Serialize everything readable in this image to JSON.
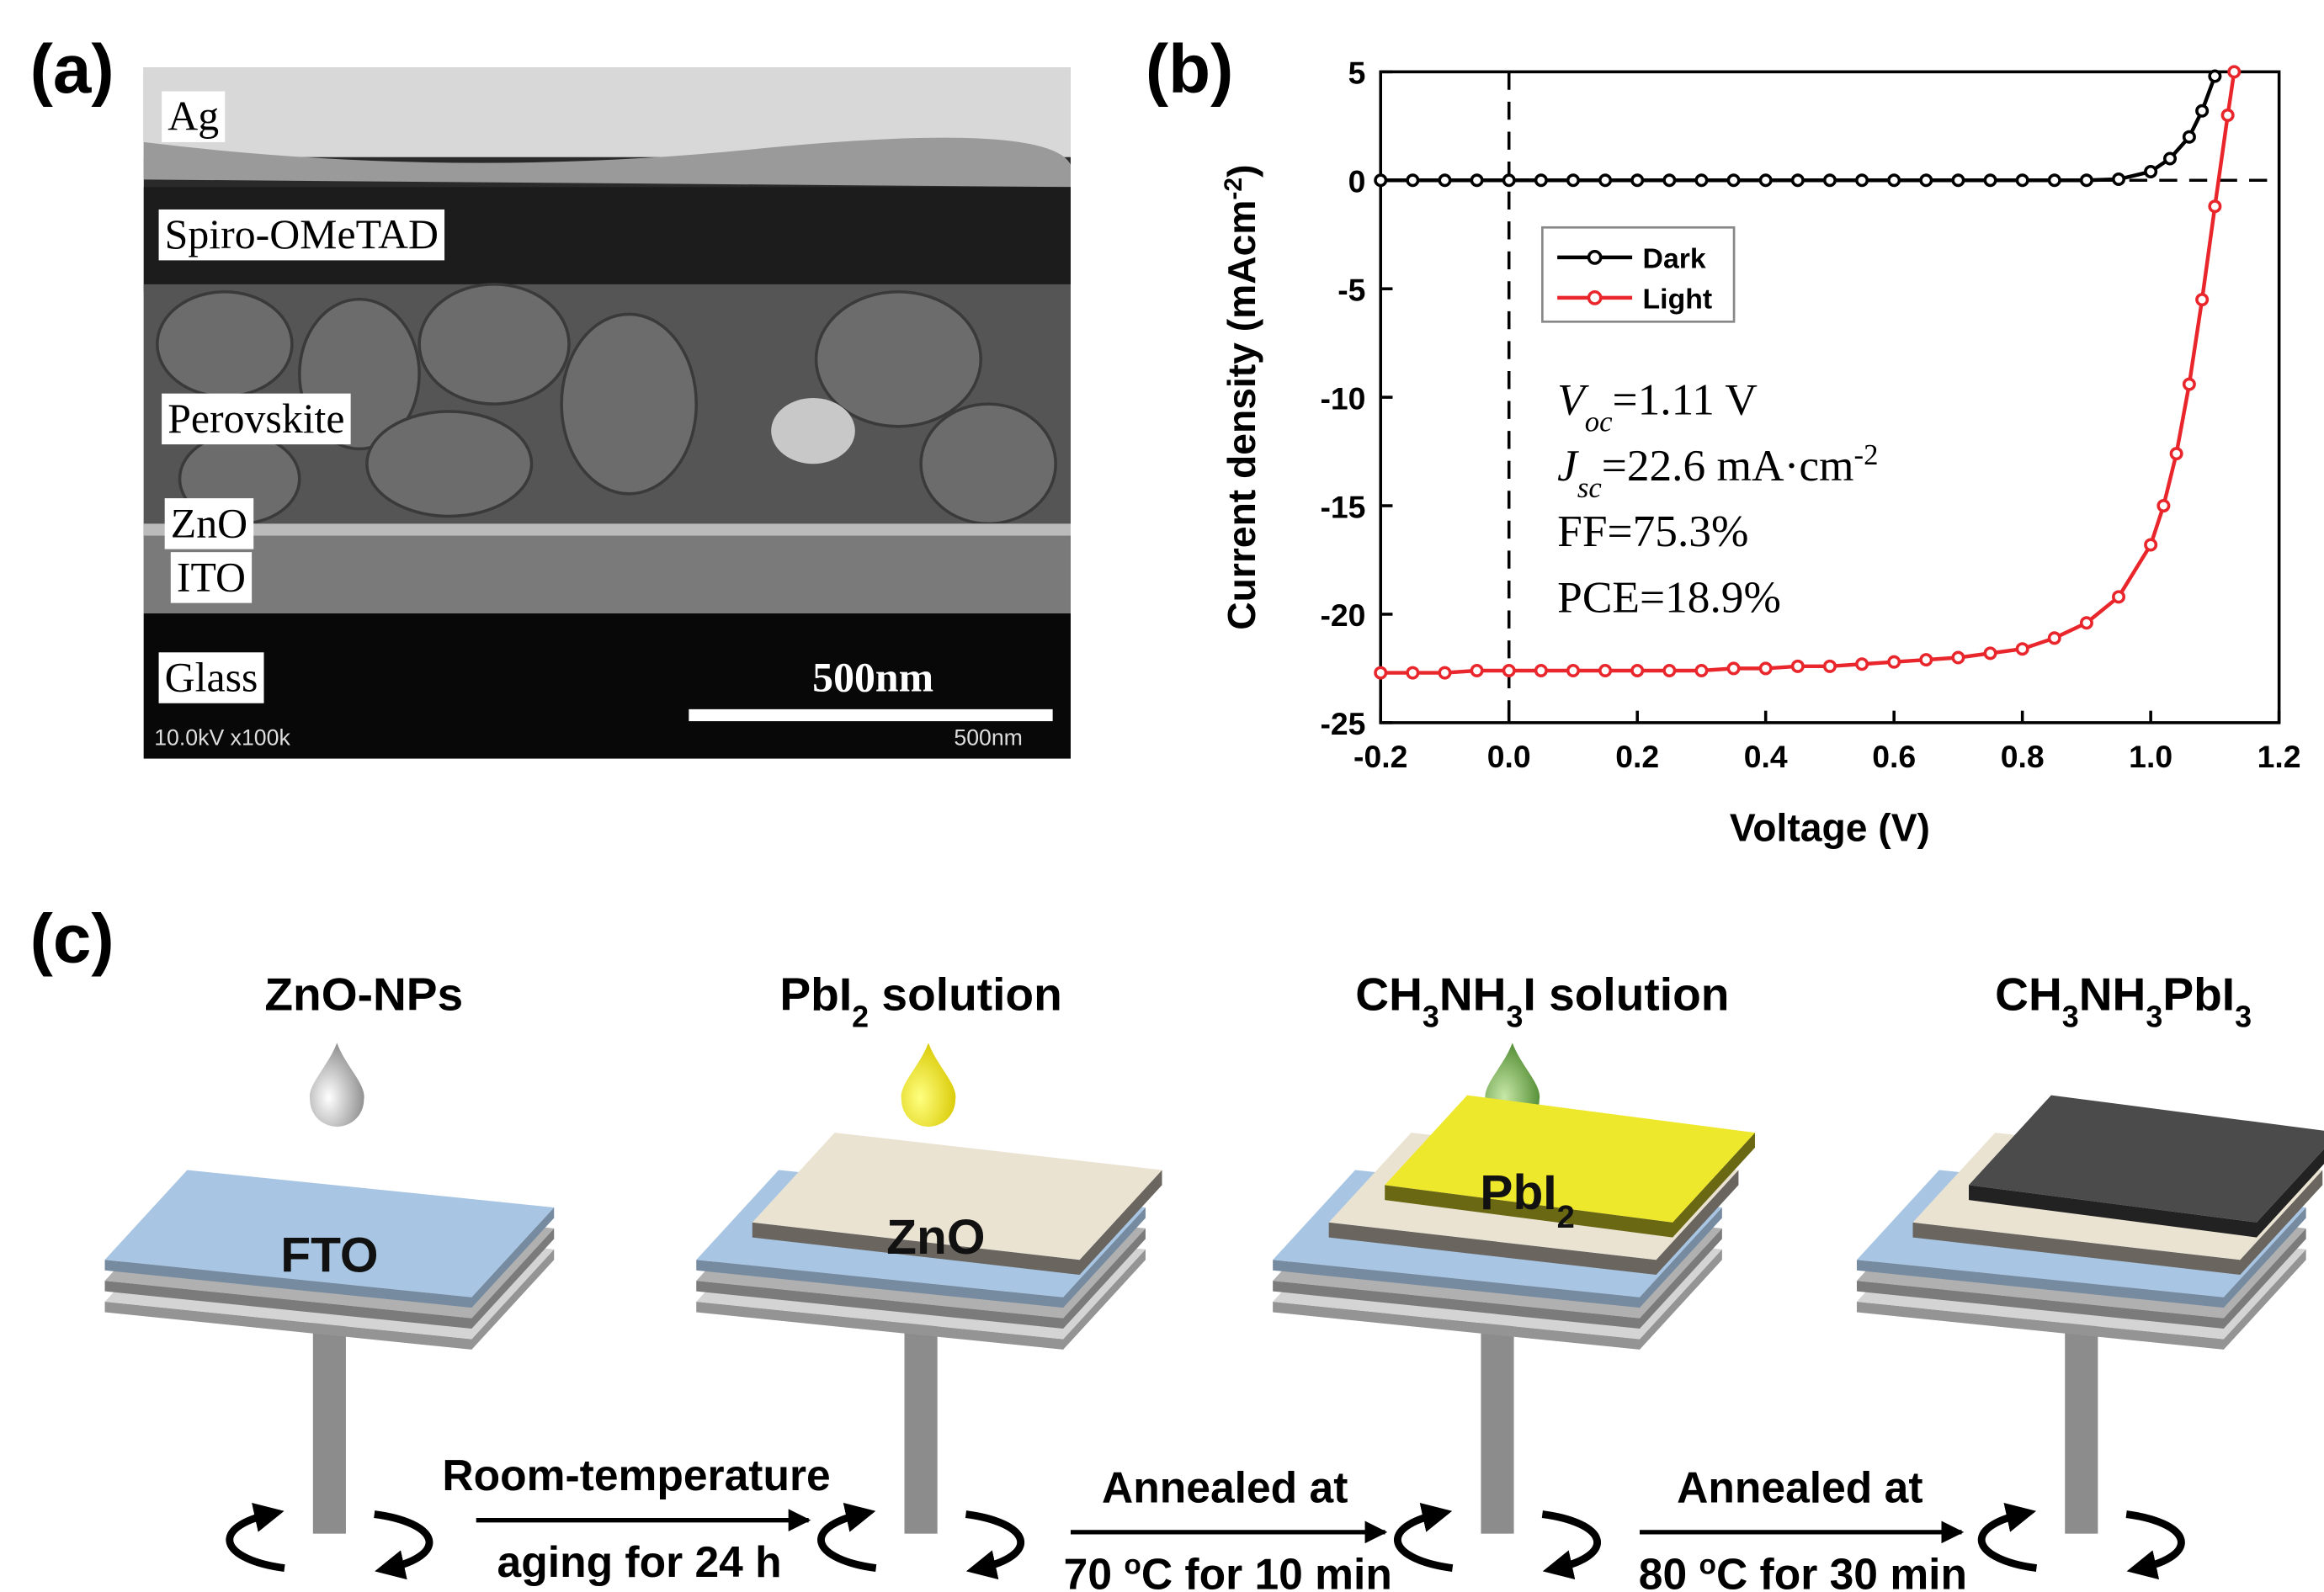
{
  "panels": [
    "(a)",
    "(b)",
    "(c)"
  ],
  "sem": {
    "layers": [
      "Ag",
      "Spiro-OMeTAD",
      "Perovskite",
      "ZnO",
      "ITO",
      "Glass"
    ],
    "scale_bar": "500nm",
    "info": "10.0kV x100k",
    "info_scale": "500nm"
  },
  "chart_data": {
    "type": "line",
    "xlabel": "Voltage (V)",
    "ylabel": [
      {
        "t": "Current density (mAcm"
      },
      {
        "sup": "-2"
      },
      {
        "t": ")"
      }
    ],
    "xlim": [
      -0.2,
      1.2
    ],
    "ylim": [
      -25,
      5
    ],
    "xticks": [
      -0.2,
      {
        "value": 0,
        "label": "0.0"
      },
      0.2,
      0.4,
      0.6,
      0.8,
      {
        "value": 1,
        "label": "1.0"
      },
      1.2
    ],
    "yticks": [
      5,
      0,
      -5,
      -10,
      -15,
      -20,
      -25
    ],
    "series": [
      {
        "name": "Dark",
        "color": "#000000",
        "x": [
          -0.2,
          -0.15,
          -0.1,
          -0.05,
          0,
          0.05,
          0.1,
          0.15,
          0.2,
          0.25,
          0.3,
          0.35,
          0.4,
          0.45,
          0.5,
          0.55,
          0.6,
          0.65,
          0.7,
          0.75,
          0.8,
          0.85,
          0.9,
          0.95,
          1.0,
          1.03,
          1.06,
          1.08,
          1.1
        ],
        "values": [
          0,
          0,
          0,
          0,
          0,
          0,
          0,
          0,
          0,
          0,
          0,
          0,
          0,
          0,
          0,
          0,
          0,
          0,
          0,
          0,
          0,
          0,
          0,
          0.05,
          0.4,
          1.0,
          2.0,
          3.2,
          4.8
        ]
      },
      {
        "name": "Light",
        "color": "#e8262b",
        "x": [
          -0.2,
          -0.15,
          -0.1,
          -0.05,
          0,
          0.05,
          0.1,
          0.15,
          0.2,
          0.25,
          0.3,
          0.35,
          0.4,
          0.45,
          0.5,
          0.55,
          0.6,
          0.65,
          0.7,
          0.75,
          0.8,
          0.85,
          0.9,
          0.95,
          1.0,
          1.02,
          1.04,
          1.06,
          1.08,
          1.1,
          1.12,
          1.13
        ],
        "values": [
          -22.7,
          -22.7,
          -22.7,
          -22.6,
          -22.6,
          -22.6,
          -22.6,
          -22.6,
          -22.6,
          -22.6,
          -22.6,
          -22.5,
          -22.5,
          -22.4,
          -22.4,
          -22.3,
          -22.2,
          -22.1,
          -22.0,
          -21.8,
          -21.6,
          -21.1,
          -20.4,
          -19.2,
          -16.8,
          -15.0,
          -12.6,
          -9.4,
          -5.5,
          -1.2,
          3.0,
          5
        ]
      }
    ],
    "annotations": [
      [
        {
          "t": "V"
        },
        {
          "sub": "oc"
        },
        {
          "t": "=1.11 V"
        }
      ],
      [
        {
          "t": "J"
        },
        {
          "sub": "sc"
        },
        {
          "t": "=22.6 mA·cm"
        },
        {
          "sup": "-2"
        }
      ],
      [
        {
          "t": "FF=75.3%"
        }
      ],
      [
        {
          "t": "PCE=18.9%"
        }
      ]
    ]
  },
  "process": {
    "reagents": [
      [
        {
          "t": "ZnO-NPs"
        }
      ],
      [
        {
          "t": "PbI"
        },
        {
          "sub": "2"
        },
        {
          "t": " solution"
        }
      ],
      [
        {
          "t": "CH"
        },
        {
          "sub": "3"
        },
        {
          "t": "NH"
        },
        {
          "sub": "3"
        },
        {
          "t": "I solution"
        }
      ],
      [
        {
          "t": "CH"
        },
        {
          "sub": "3"
        },
        {
          "t": "NH"
        },
        {
          "sub": "3"
        },
        {
          "t": "PbI"
        },
        {
          "sub": "3"
        }
      ]
    ],
    "layers": [
      [
        {
          "t": "FTO"
        }
      ],
      [
        {
          "t": "ZnO"
        }
      ],
      [
        {
          "t": "PbI"
        },
        {
          "sub": "2"
        }
      ]
    ],
    "steps": [
      [
        [
          {
            "t": "Room-temperature"
          }
        ],
        [
          {
            "t": "aging for 24 h"
          }
        ]
      ],
      [
        [
          {
            "t": "Annealed at"
          }
        ],
        [
          {
            "t": "70 "
          },
          {
            "sup": "o"
          },
          {
            "t": "C for 10 min"
          }
        ]
      ],
      [
        [
          {
            "t": "Annealed at"
          }
        ],
        [
          {
            "t": "80 "
          },
          {
            "sup": "o"
          },
          {
            "t": "C for 30 min"
          }
        ]
      ]
    ]
  }
}
